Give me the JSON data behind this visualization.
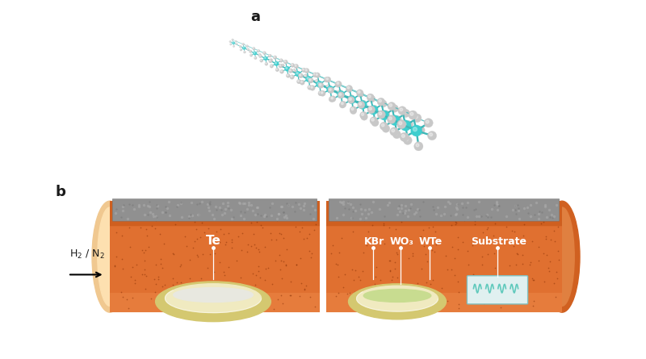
{
  "bg_color": "#ffffff",
  "label_a": "a",
  "label_b": "b",
  "label_fontsize": 13,
  "label_fontweight": "bold",
  "teal_color": "#3ecece",
  "teal_bond_color": "#3eb8b8",
  "gray_atom_color": "#c8c8c8",
  "gray_atom_edge": "#aaaaaa",
  "orange_tube": "#e07030",
  "orange_dark": "#c05010",
  "orange_light": "#f09050",
  "tube_end_color": "#f0c080",
  "gray_slab": "#909090",
  "gray_slab_light": "#b0b0b0",
  "gray_slab_dark": "#707070",
  "cream_bowl": "#d4c870",
  "cream_bowl_inner": "#f0eac0",
  "white_fill": "#e8e8e0",
  "green_fill": "#c8dc90",
  "substrate_color": "#e0f0f0",
  "substrate_edge": "#80c0c0",
  "teal_wire_color": "#40c0b0",
  "white_text": "#ffffff",
  "black_text": "#1a1a1a",
  "te_label": "Te",
  "kbr_label": "KBr",
  "wo3_label": "WO₃",
  "wte_label": "WTe",
  "substrate_label": "Substrate",
  "h2n2_label": "H₂ / N₂"
}
